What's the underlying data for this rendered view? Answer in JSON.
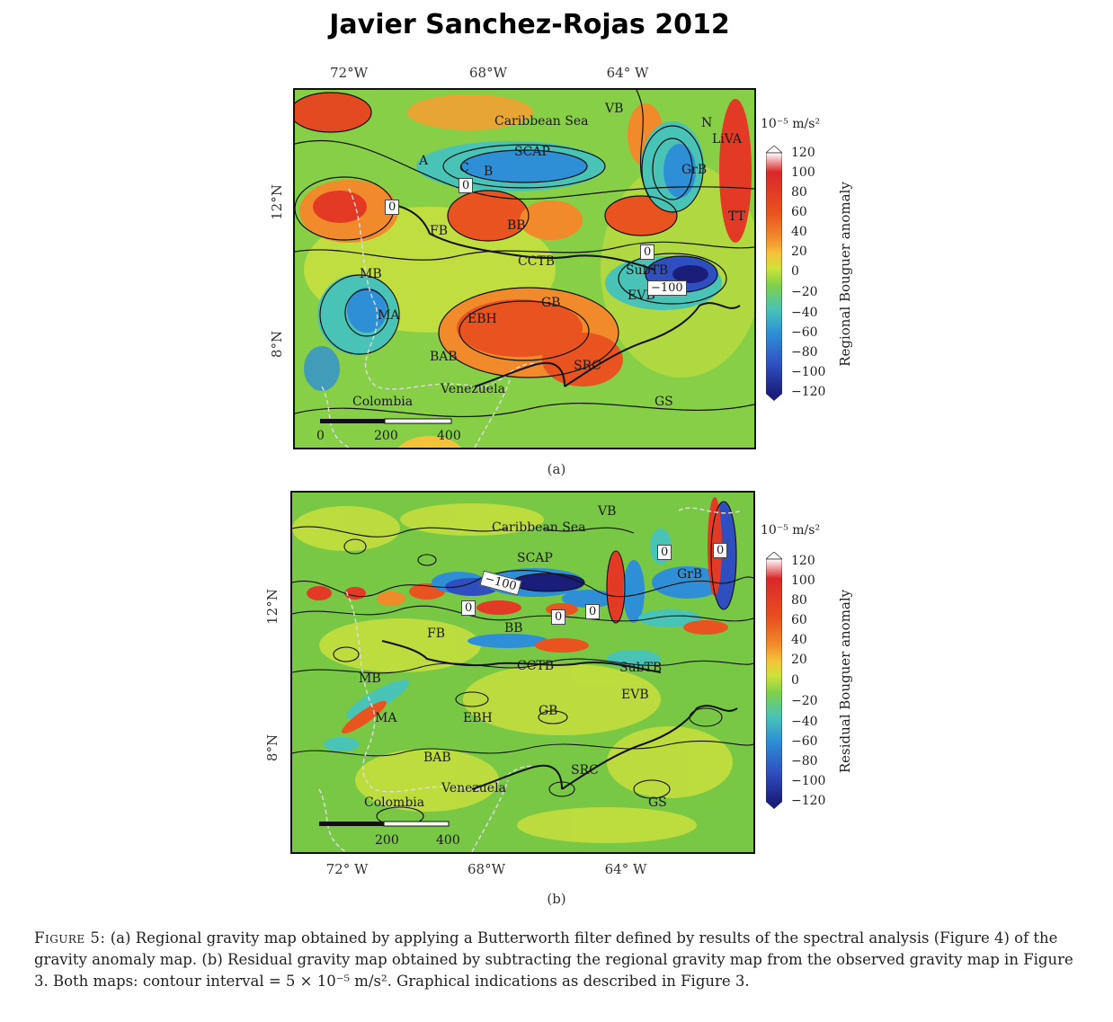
{
  "title": "Javier Sanchez-Rojas 2012",
  "panel_a": {
    "lon_labels": [
      "72°W",
      "68°W",
      "64° W"
    ],
    "lat_labels": [
      "12°N",
      "8°N"
    ],
    "region_labels": [
      "Caribbean Sea",
      "VB",
      "N",
      "LiVA",
      "SCAP",
      "A",
      "C",
      "B",
      "GrB",
      "FB",
      "BB",
      "TT",
      "CCTB",
      "SubTB",
      "MB",
      "EVB",
      "MA",
      "GB",
      "EBH",
      "BAB",
      "SRC",
      "Venezuela",
      "Colombia",
      "GS"
    ],
    "contour_labels": [
      "0",
      "0",
      "0",
      "−100"
    ],
    "scale_labels": [
      "0",
      "200",
      "400"
    ],
    "colorbar": {
      "unit": "10⁻⁵ m/s²",
      "ticks": [
        "120",
        "100",
        "80",
        "60",
        "40",
        "20",
        "0",
        "−20",
        "−40",
        "−60",
        "−80",
        "−100",
        "−120"
      ],
      "title": "Regional Bouguer anomaly"
    },
    "label": "(a)"
  },
  "panel_b": {
    "lon_labels": [
      "72° W",
      "68°W",
      "64° W"
    ],
    "lat_labels": [
      "12°N",
      "8°N"
    ],
    "region_labels": [
      "Caribbean Sea",
      "VB",
      "SCAP",
      "GrB",
      "BB",
      "FB",
      "CCTB",
      "SubTB",
      "MB",
      "EVB",
      "MA",
      "EBH",
      "GB",
      "BAB",
      "SRC",
      "Venezuela",
      "Colombia",
      "GS"
    ],
    "contour_labels": [
      "−100",
      "0",
      "0",
      "0",
      "0",
      "0"
    ],
    "scale_labels": [
      "200",
      "400"
    ],
    "colorbar": {
      "unit": "10⁻⁵ m/s²",
      "ticks": [
        "120",
        "100",
        "80",
        "60",
        "40",
        "20",
        "0",
        "−20",
        "−40",
        "−60",
        "−80",
        "−100",
        "−120"
      ],
      "title": "Residual Bouguer anomaly"
    },
    "label": "(b)"
  },
  "colorbar_colors": [
    "#ffffff",
    "#d8282a",
    "#e8531f",
    "#f08a2a",
    "#f5c33a",
    "#cfe23a",
    "#7fd14a",
    "#49c3b6",
    "#2e8fd6",
    "#2f4fc1",
    "#1a1e7a"
  ],
  "caption": {
    "figure_label": "Figure 5:",
    "text": " (a) Regional gravity map obtained by applying a Butterworth filter defined by results of the spectral analysis (Figure 4) of the gravity anomaly map. (b) Residual gravity map obtained by subtracting the regional gravity map from the observed gravity map in Figure 3. Both maps: contour interval = 5 × 10⁻⁵ m/s². Graphical indications as described in Figure 3."
  }
}
